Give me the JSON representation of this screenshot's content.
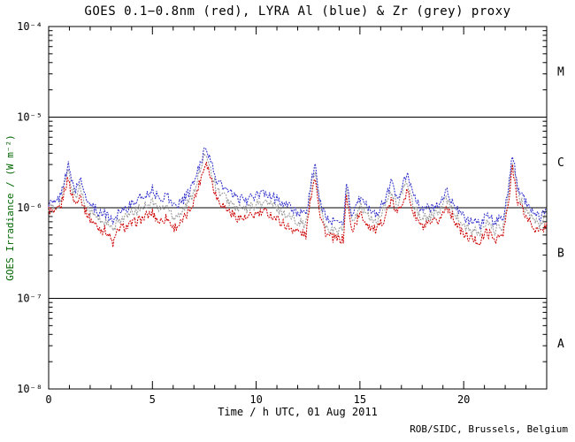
{
  "title": "GOES 0.1−0.8nm (red), LYRA Al (blue) & Zr (grey) proxy",
  "credit": "ROB/SIDC, Brussels, Belgium",
  "colors": {
    "background": "#ffffff",
    "frame": "#000000",
    "text": "#000000",
    "ylabel_text": "#006600",
    "goes_red": "#cc0000",
    "lyra_al_blue": "#3333cc",
    "lyra_zr_grey": "#9a9a9a"
  },
  "chart_data": {
    "type": "line",
    "title": "GOES 0.1−0.8nm (red), LYRA Al (blue) & Zr (grey) proxy",
    "xlabel": "Time / h UTC, 01 Aug 2011",
    "ylabel": "GOES Irradiance / (W m⁻²)",
    "credit": "ROB/SIDC, Brussels, Belgium",
    "xlim": [
      0,
      24
    ],
    "x_major_ticks": [
      0,
      5,
      10,
      15,
      20
    ],
    "x_minor_step": 1,
    "y_log": true,
    "ylim": [
      1e-08,
      0.0001
    ],
    "y_decade_exponents": [
      -8,
      -7,
      -6,
      -5,
      -4
    ],
    "hlines": [
      1e-05,
      1e-06,
      1e-07
    ],
    "flare_classes": [
      {
        "label": "M",
        "value": 3.16e-05
      },
      {
        "label": "C",
        "value": 3.16e-06
      },
      {
        "label": "B",
        "value": 3.16e-07
      },
      {
        "label": "A",
        "value": 3.16e-08
      }
    ],
    "grid": false,
    "legend_position": "none",
    "line_style": "dotted",
    "unit_scale": 1e-06,
    "x": [
      0,
      0.3,
      0.6,
      0.8,
      0.95,
      1.1,
      1.3,
      1.5,
      1.7,
      2.0,
      2.4,
      2.8,
      3.1,
      3.4,
      3.8,
      4.2,
      4.6,
      5.0,
      5.3,
      5.7,
      6.0,
      6.4,
      6.8,
      7.1,
      7.4,
      7.6,
      7.8,
      8.1,
      8.5,
      9.0,
      9.5,
      10.0,
      10.5,
      11.0,
      11.5,
      12.0,
      12.4,
      12.7,
      12.85,
      13.1,
      13.4,
      13.8,
      14.2,
      14.35,
      14.6,
      15.0,
      15.4,
      15.8,
      16.2,
      16.5,
      16.8,
      17.1,
      17.3,
      17.6,
      18.0,
      18.4,
      18.8,
      19.2,
      19.6,
      20.0,
      20.4,
      20.8,
      21.1,
      21.5,
      21.9,
      22.2,
      22.35,
      22.6,
      23.0,
      23.4,
      23.7,
      24.0
    ],
    "series": [
      {
        "name": "LYRA Zr (grey) proxy",
        "color": "#9a9a9a",
        "y": [
          1.05,
          0.95,
          1.2,
          2.0,
          2.5,
          1.7,
          1.3,
          1.75,
          1.2,
          0.9,
          0.75,
          0.68,
          0.55,
          0.75,
          0.8,
          0.92,
          1.05,
          1.2,
          0.95,
          1.05,
          0.8,
          0.9,
          1.2,
          1.8,
          3.0,
          4.1,
          2.7,
          1.6,
          1.3,
          1.0,
          0.95,
          1.1,
          1.15,
          1.0,
          0.82,
          0.72,
          0.65,
          2.0,
          2.5,
          0.95,
          0.6,
          0.55,
          0.56,
          1.65,
          0.68,
          1.05,
          0.8,
          0.68,
          1.0,
          1.55,
          1.05,
          1.6,
          1.9,
          1.05,
          0.75,
          0.8,
          0.9,
          1.25,
          0.85,
          0.62,
          0.55,
          0.52,
          0.68,
          0.56,
          0.62,
          1.6,
          3.4,
          1.4,
          0.95,
          0.72,
          0.64,
          0.82
        ]
      },
      {
        "name": "GOES 0.1-0.8nm (red)",
        "color": "#cc0000",
        "y": [
          0.95,
          0.85,
          1.05,
          1.7,
          2.1,
          1.4,
          1.1,
          1.45,
          1.0,
          0.75,
          0.6,
          0.55,
          0.4,
          0.6,
          0.62,
          0.7,
          0.78,
          0.88,
          0.7,
          0.78,
          0.6,
          0.68,
          0.95,
          1.4,
          2.4,
          3.3,
          2.2,
          1.3,
          1.0,
          0.8,
          0.75,
          0.85,
          0.9,
          0.75,
          0.62,
          0.55,
          0.5,
          1.7,
          2.2,
          0.8,
          0.5,
          0.45,
          0.45,
          1.4,
          0.55,
          0.85,
          0.65,
          0.55,
          0.8,
          1.2,
          0.85,
          1.3,
          1.5,
          0.85,
          0.6,
          0.65,
          0.72,
          1.05,
          0.7,
          0.5,
          0.45,
          0.42,
          0.55,
          0.45,
          0.5,
          1.3,
          2.9,
          1.2,
          0.8,
          0.6,
          0.52,
          0.68
        ]
      },
      {
        "name": "LYRA Al (blue) proxy",
        "color": "#3333cc",
        "y": [
          1.15,
          1.1,
          1.4,
          2.3,
          2.9,
          2.0,
          1.6,
          2.1,
          1.5,
          1.1,
          0.9,
          0.85,
          0.7,
          0.95,
          1.0,
          1.2,
          1.35,
          1.6,
          1.25,
          1.4,
          1.05,
          1.15,
          1.5,
          2.2,
          3.6,
          4.9,
          3.2,
          2.0,
          1.6,
          1.3,
          1.2,
          1.35,
          1.45,
          1.25,
          1.05,
          0.9,
          0.8,
          2.3,
          2.8,
          1.1,
          0.75,
          0.68,
          0.7,
          1.9,
          0.85,
          1.25,
          1.0,
          0.85,
          1.2,
          1.9,
          1.3,
          1.9,
          2.3,
          1.3,
          0.95,
          1.0,
          1.1,
          1.5,
          1.05,
          0.78,
          0.7,
          0.65,
          0.85,
          0.7,
          0.78,
          1.9,
          3.9,
          1.7,
          1.15,
          0.9,
          0.8,
          1.0
        ]
      }
    ]
  }
}
